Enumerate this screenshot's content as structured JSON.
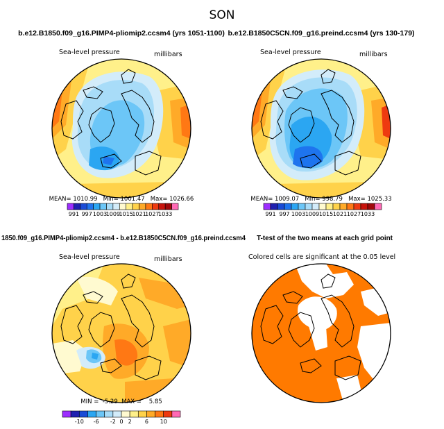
{
  "title": "SON",
  "panels": [
    {
      "id": "pliomip2",
      "heading": "b.e12.B1850.f09_g16.PIMP4-pliomip2.ccsm4 (yrs 1051-1100)",
      "field_label": "Sea-level pressure",
      "units_label": "millibars",
      "stats_text": "MEAN= 1010.99   Min= 1001.47   Max= 1026.66"
    },
    {
      "id": "preind",
      "heading": "b.e12.B1850C5CN.f09_g16.preind.ccsm4 (yrs 130-179)",
      "field_label": "Sea-level pressure",
      "units_label": "millibars",
      "stats_text": "MEAN= 1009.07   Min= 998.79   Max= 1025.33"
    },
    {
      "id": "difference",
      "heading": "1850.f09_g16.PIMP4-pliomip2.ccsm4 - b.e12.B1850C5CN.f09_g16.preind.ccsm4",
      "field_label": "Sea-level pressure",
      "units_label": "millibars",
      "stats_text": "MIN =  -5.29  MAX =    5.85"
    },
    {
      "id": "ttest",
      "heading": "T-test of the two means at each grid point",
      "field_label": "Colored cells are significant at the 0.05 level"
    }
  ],
  "chart_data": [
    {
      "type": "heatmap",
      "title": "Sea-level pressure (millibars)",
      "projection": "north polar stereographic",
      "stats": {
        "mean": 1010.99,
        "min": 1001.47,
        "max": 1026.66
      },
      "colorbar_levels": [
        991,
        994,
        997,
        1000,
        1003,
        1006,
        1009,
        1012,
        1015,
        1018,
        1021,
        1024,
        1027,
        1030,
        1033
      ],
      "colorbar_ticks": [
        "991",
        "997",
        "1003",
        "1009",
        "1015",
        "1021",
        "1027",
        "1033"
      ],
      "colorbar_colors": [
        "#9d2eff",
        "#2020b0",
        "#1a4bd6",
        "#1e74ee",
        "#2ba6f2",
        "#6cc6f7",
        "#a8dcf8",
        "#d3ecfa",
        "#fffad0",
        "#fff08a",
        "#ffd24a",
        "#ffaa28",
        "#ff7814",
        "#ee3a10",
        "#c8140c",
        "#a0080a",
        "#ff69b4"
      ]
    },
    {
      "type": "heatmap",
      "title": "Sea-level pressure (millibars)",
      "projection": "north polar stereographic",
      "stats": {
        "mean": 1009.07,
        "min": 998.79,
        "max": 1025.33
      },
      "colorbar_levels": [
        991,
        994,
        997,
        1000,
        1003,
        1006,
        1009,
        1012,
        1015,
        1018,
        1021,
        1024,
        1027,
        1030,
        1033
      ],
      "colorbar_ticks": [
        "991",
        "997",
        "1003",
        "1009",
        "1015",
        "1021",
        "1027",
        "1033"
      ],
      "colorbar_colors": [
        "#9d2eff",
        "#2020b0",
        "#1a4bd6",
        "#1e74ee",
        "#2ba6f2",
        "#6cc6f7",
        "#a8dcf8",
        "#d3ecfa",
        "#fffad0",
        "#fff08a",
        "#ffd24a",
        "#ffaa28",
        "#ff7814",
        "#ee3a10",
        "#c8140c",
        "#a0080a",
        "#ff69b4"
      ]
    },
    {
      "type": "heatmap",
      "title": "Sea-level pressure difference (millibars)",
      "projection": "north polar stereographic",
      "stats": {
        "min": -5.29,
        "max": 5.85
      },
      "colorbar_levels": [
        -12,
        -10,
        -8,
        -6,
        -4,
        -2,
        0,
        2,
        4,
        6,
        8,
        10,
        12
      ],
      "colorbar_ticks": [
        "-10",
        "-6",
        "-2",
        "0",
        "2",
        "6",
        "10"
      ],
      "colorbar_colors": [
        "#9d2eff",
        "#2020b0",
        "#1a4bd6",
        "#2ba6f2",
        "#6cc6f7",
        "#a8dcf8",
        "#d3ecfa",
        "#fffad0",
        "#fff08a",
        "#ffd24a",
        "#ffaa28",
        "#ff7814",
        "#ee3a10",
        "#ff69b4"
      ]
    },
    {
      "type": "heatmap",
      "title": "T-test significance mask",
      "projection": "north polar stereographic",
      "significance_level": 0.05,
      "significant_color": "#ff7a00"
    }
  ]
}
